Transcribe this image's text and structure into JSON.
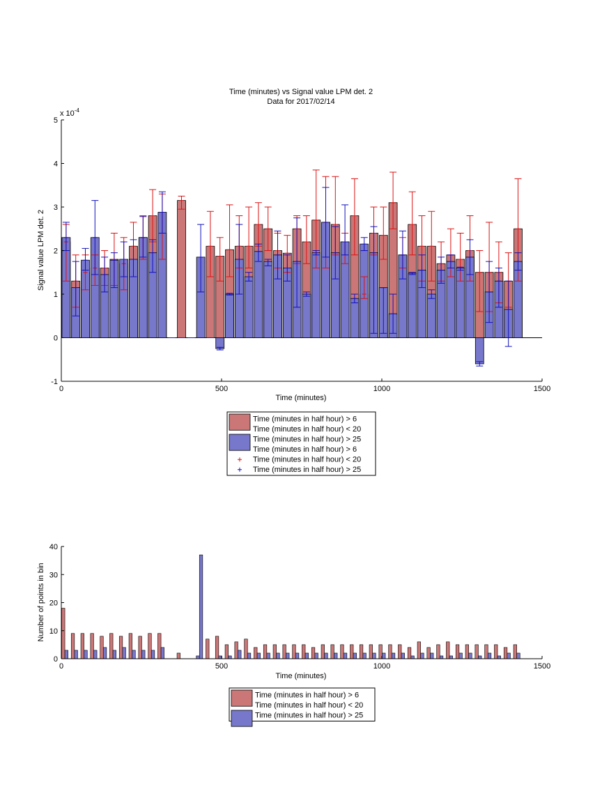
{
  "colors": {
    "red_bar": "#cc7777",
    "blue_bar": "#7777cc",
    "red_err": "#dd1111",
    "blue_err": "#1111bb",
    "axis": "#000000"
  },
  "chart_data": [
    {
      "type": "bar",
      "title": "Time (minutes) vs Signal value LPM det. 2",
      "subtitle": "Data for 2017/02/14",
      "xlabel": "Time (minutes)",
      "ylabel": "Signal value LPM det. 2",
      "y_exponent": "x 10",
      "y_exponent_power": "-4",
      "xlim": [
        0,
        1500
      ],
      "ylim": [
        -1,
        5
      ],
      "xticks": [
        "0",
        "500",
        "1000",
        "1500"
      ],
      "yticks": [
        "-1",
        "0",
        "1",
        "2",
        "3",
        "4",
        "5"
      ],
      "legend": [
        {
          "kind": "bar",
          "color": "red",
          "label": "Time (minutes in half hour) > 6"
        },
        {
          "kind": "text",
          "label": "Time (minutes in half hour) < 20"
        },
        {
          "kind": "bar",
          "color": "blue",
          "label": "Time (minutes in half hour) > 25"
        },
        {
          "kind": "text",
          "label": "Time (minutes in half hour) > 6"
        },
        {
          "kind": "marker",
          "color": "red",
          "label": "Time (minutes in half hour) < 20"
        },
        {
          "kind": "marker",
          "color": "blue",
          "label": "Time (minutes in half hour) > 25"
        }
      ],
      "series": [
        {
          "color": "red",
          "x": [
            15,
            45,
            75,
            105,
            135,
            165,
            195,
            225,
            255,
            285,
            315,
            375,
            465,
            495,
            525,
            555,
            585,
            615,
            645,
            675,
            705,
            735,
            765,
            795,
            825,
            855,
            885,
            915,
            945,
            975,
            1005,
            1035,
            1065,
            1095,
            1125,
            1155,
            1185,
            1215,
            1245,
            1275,
            1305,
            1335,
            1365,
            1395,
            1425
          ],
          "values": [
            2.2,
            1.3,
            1.5,
            1.6,
            1.6,
            1.8,
            1.7,
            2.1,
            2.3,
            2.8,
            2.4,
            3.15,
            2.1,
            1.87,
            2.02,
            2.1,
            2.1,
            2.6,
            2.5,
            2.0,
            1.94,
            2.5,
            2.2,
            2.7,
            2.65,
            2.6,
            2.2,
            2.8,
            1.0,
            2.4,
            2.35,
            3.1,
            1.9,
            2.6,
            2.1,
            2.1,
            1.7,
            1.9,
            1.8,
            2.0,
            1.5,
            1.5,
            1.5,
            1.3,
            2.5
          ],
          "err_low": [
            1.3,
            0.7,
            1.1,
            1.2,
            1.2,
            1.2,
            1.1,
            1.4,
            1.8,
            2.2,
            1.8,
            2.95,
            1.4,
            1.3,
            1.4,
            1.6,
            1.6,
            2.1,
            2.0,
            1.6,
            1.5,
            1.7,
            1.7,
            1.6,
            1.6,
            1.9,
            1.7,
            1.9,
            0.9,
            1.9,
            1.8,
            2.5,
            1.6,
            1.9,
            1.3,
            1.3,
            1.3,
            1.4,
            1.3,
            1.3,
            0.6,
            0.6,
            0.8,
            0.7,
            1.3
          ],
          "err_high": [
            2.6,
            1.9,
            1.9,
            1.9,
            2.0,
            2.4,
            2.3,
            2.65,
            2.8,
            3.4,
            3.3,
            3.25,
            2.9,
            2.3,
            3.05,
            2.8,
            3.0,
            3.1,
            3.0,
            2.4,
            2.35,
            2.8,
            2.8,
            3.85,
            3.7,
            3.7,
            2.4,
            3.65,
            1.4,
            3.0,
            3.0,
            3.8,
            2.3,
            3.35,
            2.8,
            2.9,
            2.2,
            2.5,
            2.4,
            2.8,
            2.0,
            2.65,
            2.2,
            1.95,
            3.65
          ]
        },
        {
          "color": "blue",
          "x": [
            15,
            45,
            75,
            105,
            135,
            165,
            195,
            225,
            255,
            285,
            315,
            345,
            375,
            405,
            435,
            465,
            495,
            525,
            555,
            585,
            615,
            645,
            675,
            705,
            735,
            765,
            795,
            825,
            855,
            885,
            915,
            945,
            975,
            1005,
            1035,
            1065,
            1095,
            1125,
            1155,
            1185,
            1215,
            1245,
            1275,
            1305,
            1335,
            1365,
            1395,
            1425
          ],
          "values": [
            2.3,
            1.15,
            1.78,
            2.3,
            1.45,
            1.78,
            1.8,
            1.8,
            2.3,
            1.95,
            2.88,
            0,
            0,
            0,
            1.85,
            0,
            -0.25,
            1.0,
            1.8,
            1.4,
            1.98,
            1.75,
            1.9,
            1.6,
            1.75,
            1.0,
            1.95,
            2.65,
            1.95,
            2.2,
            0.9,
            2.15,
            1.95,
            1.15,
            0.55,
            1.9,
            1.48,
            1.55,
            1.0,
            1.55,
            1.75,
            1.6,
            1.85,
            -0.6,
            1.05,
            1.3,
            0.65,
            1.75
          ],
          "err_low": [
            2.0,
            0.5,
            1.55,
            1.45,
            1.05,
            1.15,
            1.4,
            1.4,
            1.85,
            1.5,
            2.4,
            0,
            0,
            0,
            1.05,
            0,
            -0.28,
            0.98,
            1.0,
            1.3,
            1.75,
            1.65,
            1.35,
            1.3,
            0.7,
            0.95,
            1.9,
            1.85,
            1.35,
            1.9,
            0.8,
            2.0,
            0.1,
            0.1,
            0.1,
            1.35,
            1.45,
            1.15,
            0.9,
            1.25,
            1.6,
            1.55,
            1.45,
            -0.55,
            0.35,
            0.7,
            -0.2,
            1.55
          ],
          "err_high": [
            2.65,
            1.75,
            2.05,
            3.15,
            1.85,
            1.95,
            2.2,
            2.25,
            2.78,
            2.25,
            3.35,
            0,
            0,
            0,
            2.6,
            0,
            -0.22,
            1.02,
            2.6,
            1.5,
            2.15,
            1.8,
            2.45,
            1.9,
            2.75,
            1.05,
            2.0,
            3.45,
            2.55,
            3.05,
            1.0,
            2.3,
            2.55,
            1.15,
            1.0,
            2.45,
            1.5,
            1.9,
            1.1,
            1.85,
            1.9,
            1.62,
            2.25,
            -0.65,
            1.75,
            1.6,
            1.3,
            1.95
          ]
        }
      ]
    },
    {
      "type": "bar",
      "xlabel": "Time (minutes)",
      "ylabel": "Number of points in bin",
      "xlim": [
        0,
        1500
      ],
      "ylim": [
        0,
        40
      ],
      "xticks": [
        "0",
        "500",
        "1000",
        "1500"
      ],
      "yticks": [
        "0",
        "10",
        "20",
        "30",
        "40"
      ],
      "legend": [
        {
          "kind": "bar",
          "color": "red",
          "label": "Time (minutes in half hour) > 6"
        },
        {
          "kind": "text",
          "label": "Time (minutes in half hour) < 20"
        },
        {
          "kind": "bar",
          "color": "blue",
          "label": "Time (minutes in half hour) > 25"
        }
      ],
      "series": [
        {
          "color": "red",
          "x": [
            6,
            36,
            66,
            96,
            126,
            156,
            186,
            216,
            246,
            276,
            306,
            366,
            456,
            486,
            516,
            546,
            576,
            606,
            636,
            666,
            696,
            726,
            756,
            786,
            816,
            846,
            876,
            906,
            936,
            966,
            996,
            1026,
            1056,
            1086,
            1116,
            1146,
            1176,
            1206,
            1236,
            1266,
            1296,
            1326,
            1356,
            1386,
            1416
          ],
          "values": [
            18,
            9,
            9,
            9,
            8,
            9,
            8,
            9,
            8,
            9,
            9,
            2,
            7,
            8,
            5,
            6,
            7,
            4,
            5,
            5,
            5,
            5,
            5,
            4,
            5,
            5,
            5,
            5,
            5,
            5,
            5,
            5,
            5,
            4,
            6,
            4,
            5,
            6,
            5,
            5,
            5,
            5,
            5,
            4,
            5
          ]
        },
        {
          "color": "blue",
          "x": [
            16,
            46,
            76,
            106,
            136,
            166,
            196,
            226,
            256,
            286,
            316,
            426,
            436,
            496,
            526,
            556,
            586,
            616,
            646,
            676,
            706,
            736,
            766,
            796,
            826,
            856,
            886,
            916,
            946,
            976,
            1006,
            1036,
            1066,
            1096,
            1126,
            1156,
            1186,
            1216,
            1246,
            1276,
            1306,
            1336,
            1366,
            1396,
            1426
          ],
          "values": [
            3,
            3,
            3,
            3,
            4,
            3,
            4,
            3,
            3,
            3,
            4,
            1,
            37,
            1,
            1,
            3,
            2,
            2,
            2,
            2,
            2,
            2,
            2,
            2,
            2,
            2,
            2,
            2,
            2,
            2,
            2,
            2,
            2,
            1,
            2,
            2,
            1,
            1,
            2,
            2,
            1,
            2,
            1,
            2,
            2
          ]
        }
      ]
    }
  ]
}
